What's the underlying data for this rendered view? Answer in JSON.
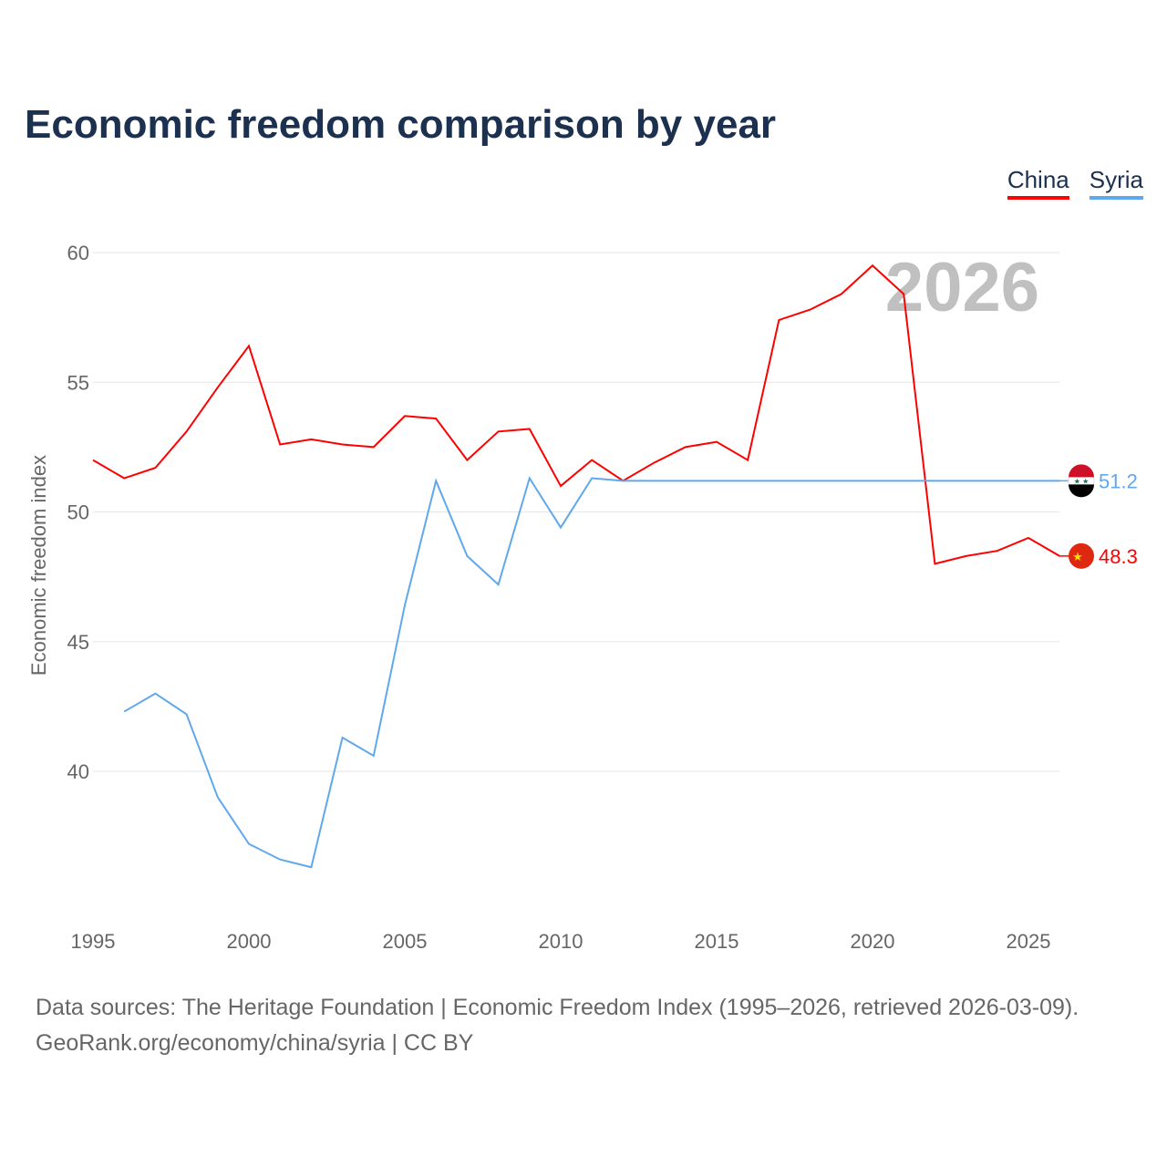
{
  "title": "Economic freedom comparison by year",
  "year_watermark": "2026",
  "footer": {
    "line1": "Data sources: The Heritage Foundation | Economic Freedom Index (1995–2026, retrieved 2026-03-09).",
    "line2": "GeoRank.org/economy/china/syria | CC BY"
  },
  "chart_data": {
    "type": "line",
    "title": "Economic freedom comparison by year",
    "xlabel": "",
    "ylabel": "Economic freedom index",
    "xlim": [
      1995,
      2026
    ],
    "ylim": [
      36,
      62
    ],
    "yticks": [
      40,
      45,
      50,
      55,
      60
    ],
    "xticks": [
      1995,
      2000,
      2005,
      2010,
      2015,
      2020,
      2025
    ],
    "grid": true,
    "legend_position": "top-right",
    "series": [
      {
        "name": "China",
        "color": "#ff0000",
        "end_label": "48.3",
        "flag": "china-flag",
        "x": [
          1995,
          1996,
          1997,
          1998,
          1999,
          2000,
          2001,
          2002,
          2003,
          2004,
          2005,
          2006,
          2007,
          2008,
          2009,
          2010,
          2011,
          2012,
          2013,
          2014,
          2015,
          2016,
          2017,
          2018,
          2019,
          2020,
          2021,
          2022,
          2023,
          2024,
          2025,
          2026
        ],
        "values": [
          52.0,
          51.3,
          51.7,
          53.1,
          54.8,
          56.4,
          52.6,
          52.8,
          52.6,
          52.5,
          53.7,
          53.6,
          52.0,
          53.1,
          53.2,
          51.0,
          52.0,
          51.2,
          51.9,
          52.5,
          52.7,
          52.0,
          57.4,
          57.8,
          58.4,
          59.5,
          58.4,
          48.0,
          48.3,
          48.5,
          49.0,
          48.3
        ]
      },
      {
        "name": "Syria",
        "color": "#5fa8ec",
        "end_label": "51.2",
        "flag": "syria-flag",
        "x": [
          1996,
          1997,
          1998,
          1999,
          2000,
          2001,
          2002,
          2003,
          2004,
          2005,
          2006,
          2007,
          2008,
          2009,
          2010,
          2011,
          2012,
          2013,
          2014,
          2015,
          2016,
          2017,
          2018,
          2019,
          2020,
          2021,
          2022,
          2023,
          2024,
          2025,
          2026
        ],
        "values": [
          42.3,
          43.0,
          42.2,
          39.0,
          37.2,
          36.6,
          36.3,
          41.3,
          40.6,
          46.4,
          51.2,
          48.3,
          47.2,
          51.3,
          49.4,
          51.3,
          51.2,
          51.2,
          51.2,
          51.2,
          51.2,
          51.2,
          51.2,
          51.2,
          51.2,
          51.2,
          51.2,
          51.2,
          51.2,
          51.2,
          51.2
        ]
      }
    ]
  }
}
